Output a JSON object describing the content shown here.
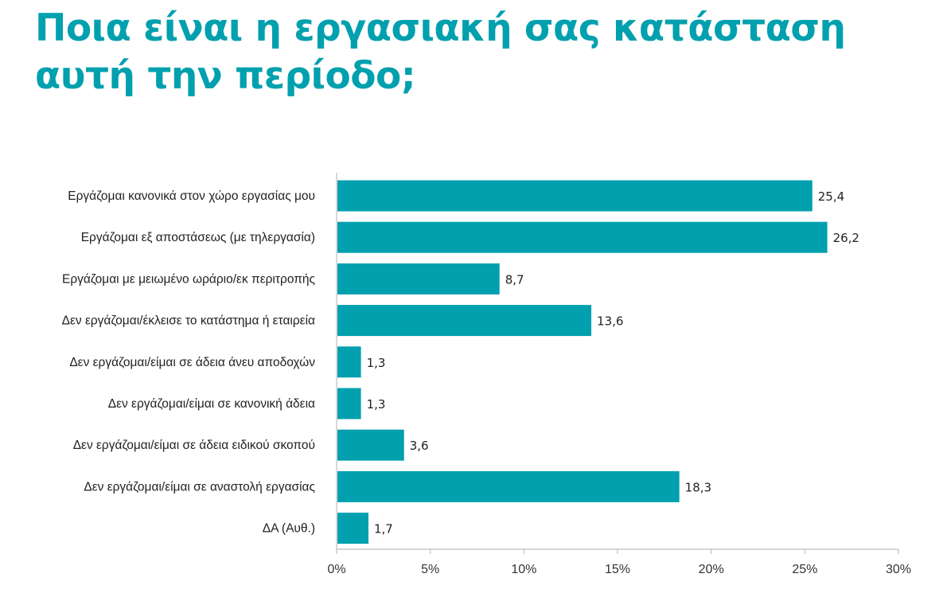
{
  "colors": {
    "accent": "#00a0ae",
    "bar": "#00a0ae",
    "axis": "#bdbdbd",
    "text": "#222222"
  },
  "chart_data": {
    "type": "bar",
    "orientation": "horizontal",
    "title": "Ποια είναι η εργασιακή σας κατάσταση αυτή την περίοδο;",
    "xlabel": "",
    "ylabel": "",
    "categories": [
      "Εργάζομαι κανονικά στον χώρο εργασίας μου",
      "Εργάζομαι εξ αποστάσεως (με τηλεργασία)",
      "Εργάζομαι με μειωμένο ωράριο/εκ περιτροπής",
      "Δεν εργάζομαι/έκλεισε το κατάστημα ή εταιρεία",
      "Δεν εργάζομαι/είμαι σε άδεια άνευ αποδοχών",
      "Δεν εργάζομαι/είμαι σε κανονική άδεια",
      "Δεν εργάζομαι/είμαι σε άδεια ειδικού σκοπού",
      "Δεν εργάζομαι/είμαι σε αναστολή εργασίας",
      "ΔΑ (Αυθ.)"
    ],
    "values": [
      25.4,
      26.2,
      8.7,
      13.6,
      1.3,
      1.3,
      3.6,
      18.3,
      1.7
    ],
    "value_labels": [
      "25,4",
      "26,2",
      "8,7",
      "13,6",
      "1,3",
      "1,3",
      "3,6",
      "18,3",
      "1,7"
    ],
    "xlim": [
      0,
      30
    ],
    "ticks": [
      0,
      5,
      10,
      15,
      20,
      25,
      30
    ],
    "tick_labels": [
      "0%",
      "5%",
      "10%",
      "15%",
      "20%",
      "25%",
      "30%"
    ],
    "grid": false,
    "legend": "none"
  }
}
